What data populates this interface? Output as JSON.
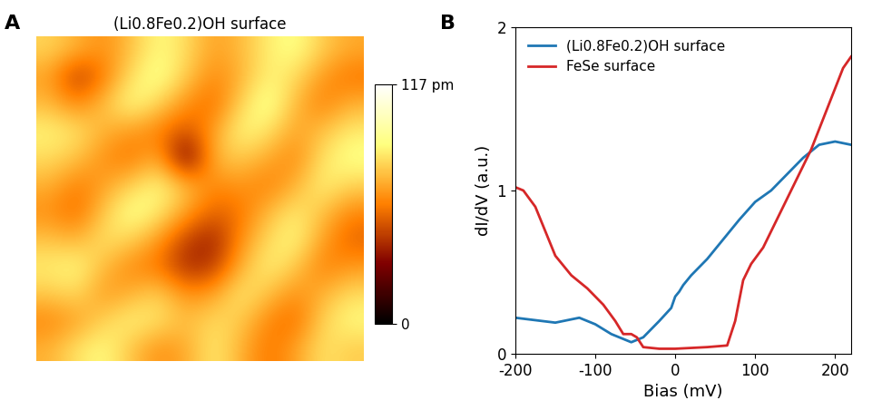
{
  "chart_data": [
    {
      "type": "heatmap",
      "panel": "A",
      "title": "(Li0.8Fe0.2)OH surface",
      "cells": [
        [
          78,
          70,
          62,
          74,
          88,
          80,
          66,
          72,
          84,
          90,
          76,
          68
        ],
        [
          66,
          40,
          58,
          82,
          92,
          76,
          60,
          70,
          86,
          80,
          64,
          56
        ],
        [
          72,
          60,
          74,
          90,
          78,
          62,
          54,
          78,
          94,
          72,
          58,
          70
        ],
        [
          86,
          82,
          70,
          64,
          58,
          48,
          66,
          88,
          82,
          66,
          74,
          84
        ],
        [
          80,
          74,
          62,
          56,
          70,
          20,
          72,
          76,
          68,
          60,
          82,
          90
        ],
        [
          70,
          58,
          66,
          78,
          88,
          74,
          60,
          64,
          58,
          70,
          86,
          78
        ],
        [
          62,
          54,
          76,
          92,
          84,
          66,
          52,
          56,
          72,
          84,
          74,
          60
        ],
        [
          74,
          70,
          82,
          78,
          64,
          44,
          36,
          62,
          80,
          88,
          66,
          52
        ],
        [
          84,
          88,
          72,
          60,
          56,
          38,
          42,
          70,
          86,
          76,
          58,
          64
        ],
        [
          76,
          80,
          64,
          70,
          78,
          62,
          66,
          84,
          74,
          62,
          70,
          80
        ],
        [
          60,
          66,
          78,
          86,
          82,
          72,
          80,
          76,
          60,
          54,
          78,
          88
        ],
        [
          70,
          82,
          88,
          74,
          62,
          68,
          84,
          70,
          56,
          66,
          82,
          76
        ]
      ],
      "colorbar_range": [
        0,
        117
      ],
      "colorbar_ticks": [
        {
          "value": 0,
          "label": "0"
        },
        {
          "value": 117,
          "label": "117 pm"
        }
      ]
    },
    {
      "type": "line",
      "panel": "B",
      "xlabel": "Bias (mV)",
      "ylabel": "dI/dV (a.u.)",
      "xlim": [
        -200,
        220
      ],
      "xticks": [
        -200,
        -100,
        0,
        100,
        200
      ],
      "ylim": [
        0,
        2
      ],
      "yticks": [
        0,
        1,
        2
      ],
      "legend": "upper left",
      "series": [
        {
          "name": "(Li0.8Fe0.2)OH surface",
          "color": "#1f77b4",
          "x": [
            -200,
            -150,
            -120,
            -100,
            -80,
            -55,
            -40,
            -20,
            -5,
            0,
            5,
            10,
            20,
            40,
            60,
            80,
            100,
            120,
            140,
            160,
            180,
            200,
            220
          ],
          "values": [
            0.22,
            0.19,
            0.22,
            0.18,
            0.12,
            0.07,
            0.1,
            0.2,
            0.28,
            0.35,
            0.38,
            0.42,
            0.48,
            0.58,
            0.7,
            0.82,
            0.93,
            1.0,
            1.1,
            1.2,
            1.28,
            1.3,
            1.28
          ]
        },
        {
          "name": "FeSe surface",
          "color": "#d62728",
          "x": [
            -200,
            -190,
            -175,
            -160,
            -150,
            -130,
            -110,
            -90,
            -75,
            -65,
            -55,
            -48,
            -40,
            -20,
            0,
            40,
            65,
            75,
            85,
            95,
            110,
            130,
            150,
            170,
            190,
            210,
            220
          ],
          "values": [
            1.02,
            1.0,
            0.9,
            0.72,
            0.6,
            0.48,
            0.4,
            0.3,
            0.2,
            0.12,
            0.12,
            0.1,
            0.04,
            0.03,
            0.03,
            0.04,
            0.05,
            0.2,
            0.45,
            0.55,
            0.65,
            0.85,
            1.05,
            1.25,
            1.5,
            1.75,
            1.82
          ]
        }
      ]
    }
  ]
}
